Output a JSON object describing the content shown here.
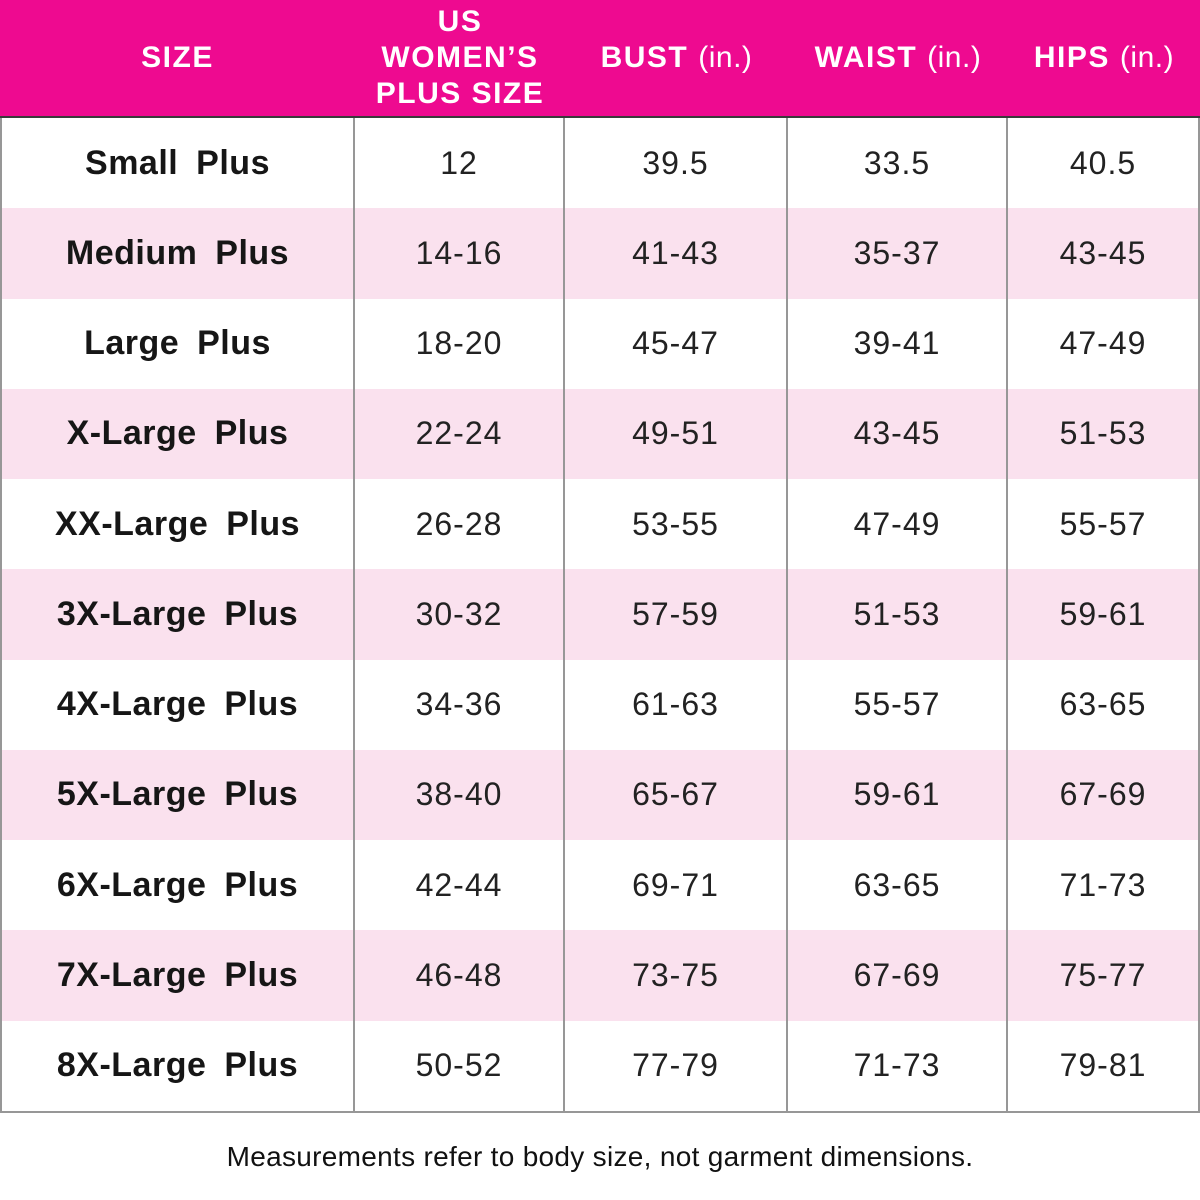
{
  "colors": {
    "header_bg": "#EE0A90",
    "header_text": "#FFFFFF",
    "row_bg": "#FFFFFF",
    "row_alt_bg": "#FAE1EE",
    "grid_line": "#979797",
    "header_divider": "#3A3A3A",
    "body_text": "#1A1A1A"
  },
  "chart_data": {
    "type": "table",
    "columns": [
      {
        "label": "SIZE",
        "unit": ""
      },
      {
        "label": "US WOMEN’S PLUS SIZE",
        "unit": ""
      },
      {
        "label": "BUST",
        "unit": "(in.)"
      },
      {
        "label": "WAIST",
        "unit": "(in.)"
      },
      {
        "label": "HIPS",
        "unit": "(in.)"
      }
    ],
    "rows": [
      {
        "size": "Small Plus",
        "plus_size": "12",
        "bust": "39.5",
        "waist": "33.5",
        "hips": "40.5"
      },
      {
        "size": "Medium Plus",
        "plus_size": "14-16",
        "bust": "41-43",
        "waist": "35-37",
        "hips": "43-45"
      },
      {
        "size": "Large Plus",
        "plus_size": "18-20",
        "bust": "45-47",
        "waist": "39-41",
        "hips": "47-49"
      },
      {
        "size": "X-Large Plus",
        "plus_size": "22-24",
        "bust": "49-51",
        "waist": "43-45",
        "hips": "51-53"
      },
      {
        "size": "XX-Large Plus",
        "plus_size": "26-28",
        "bust": "53-55",
        "waist": "47-49",
        "hips": "55-57"
      },
      {
        "size": "3X-Large Plus",
        "plus_size": "30-32",
        "bust": "57-59",
        "waist": "51-53",
        "hips": "59-61"
      },
      {
        "size": "4X-Large Plus",
        "plus_size": "34-36",
        "bust": "61-63",
        "waist": "55-57",
        "hips": "63-65"
      },
      {
        "size": "5X-Large Plus",
        "plus_size": "38-40",
        "bust": "65-67",
        "waist": "59-61",
        "hips": "67-69"
      },
      {
        "size": "6X-Large Plus",
        "plus_size": "42-44",
        "bust": "69-71",
        "waist": "63-65",
        "hips": "71-73"
      },
      {
        "size": "7X-Large Plus",
        "plus_size": "46-48",
        "bust": "73-75",
        "waist": "67-69",
        "hips": "75-77"
      },
      {
        "size": "8X-Large Plus",
        "plus_size": "50-52",
        "bust": "77-79",
        "waist": "71-73",
        "hips": "79-81"
      }
    ]
  },
  "footer": {
    "note": "Measurements refer to body size, not garment dimensions."
  }
}
